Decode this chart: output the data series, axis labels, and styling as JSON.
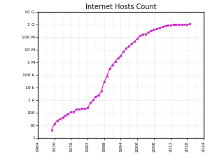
{
  "title": "Internet Hosts Count",
  "title_fontsize": 7,
  "line_color": "#BB00BB",
  "marker": "x",
  "marker_size": 2,
  "line_width": 0.7,
  "background_color": "#ffffff",
  "grid_color": "#cccccc",
  "xlim": [
    1964,
    2024
  ],
  "ylim_log": [
    1,
    10000000000
  ],
  "xticks": [
    1964,
    1970,
    1976,
    1982,
    1988,
    1994,
    2000,
    2006,
    2012,
    2018,
    2024
  ],
  "ytick_labels": [
    "1",
    "10",
    "100",
    "1 k",
    "10 k",
    "100 k",
    "1 M",
    "10 M",
    "100 M",
    "1 G",
    "10 G"
  ],
  "ytick_values": [
    1,
    10,
    100,
    1000,
    10000,
    100000,
    1000000,
    10000000,
    100000000,
    1000000000,
    10000000000
  ],
  "data": [
    [
      1969,
      4
    ],
    [
      1970,
      13
    ],
    [
      1971,
      23
    ],
    [
      1972,
      31
    ],
    [
      1973,
      42
    ],
    [
      1974,
      62
    ],
    [
      1975,
      77
    ],
    [
      1976,
      111
    ],
    [
      1977,
      111
    ],
    [
      1978,
      188
    ],
    [
      1979,
      188
    ],
    [
      1980,
      213
    ],
    [
      1981,
      213
    ],
    [
      1982,
      235
    ],
    [
      1983,
      562
    ],
    [
      1984,
      1024
    ],
    [
      1985,
      1961
    ],
    [
      1986,
      2308
    ],
    [
      1987,
      5089
    ],
    [
      1988,
      28174
    ],
    [
      1989,
      80000
    ],
    [
      1990,
      313000
    ],
    [
      1991,
      617000
    ],
    [
      1992,
      1136000
    ],
    [
      1993,
      2056000
    ],
    [
      1994,
      3212000
    ],
    [
      1995,
      6642000
    ],
    [
      1996,
      12881000
    ],
    [
      1997,
      19540000
    ],
    [
      1998,
      29670000
    ],
    [
      1999,
      43230000
    ],
    [
      2000,
      72398092
    ],
    [
      2001,
      125888197
    ],
    [
      2002,
      162128493
    ],
    [
      2003,
      171638297
    ],
    [
      2004,
      233101481
    ],
    [
      2005,
      317646084
    ],
    [
      2006,
      394991609
    ],
    [
      2007,
      433193199
    ],
    [
      2008,
      541677360
    ],
    [
      2009,
      625226456
    ],
    [
      2010,
      732740819
    ],
    [
      2011,
      818374074
    ],
    [
      2012,
      888470009
    ],
    [
      2013,
      920359751
    ],
    [
      2014,
      963497390
    ],
    [
      2015,
      977220866
    ],
    [
      2016,
      1004795701
    ],
    [
      2017,
      1021162294
    ],
    [
      2018,
      1020961346
    ],
    [
      2019,
      1056715128
    ]
  ]
}
